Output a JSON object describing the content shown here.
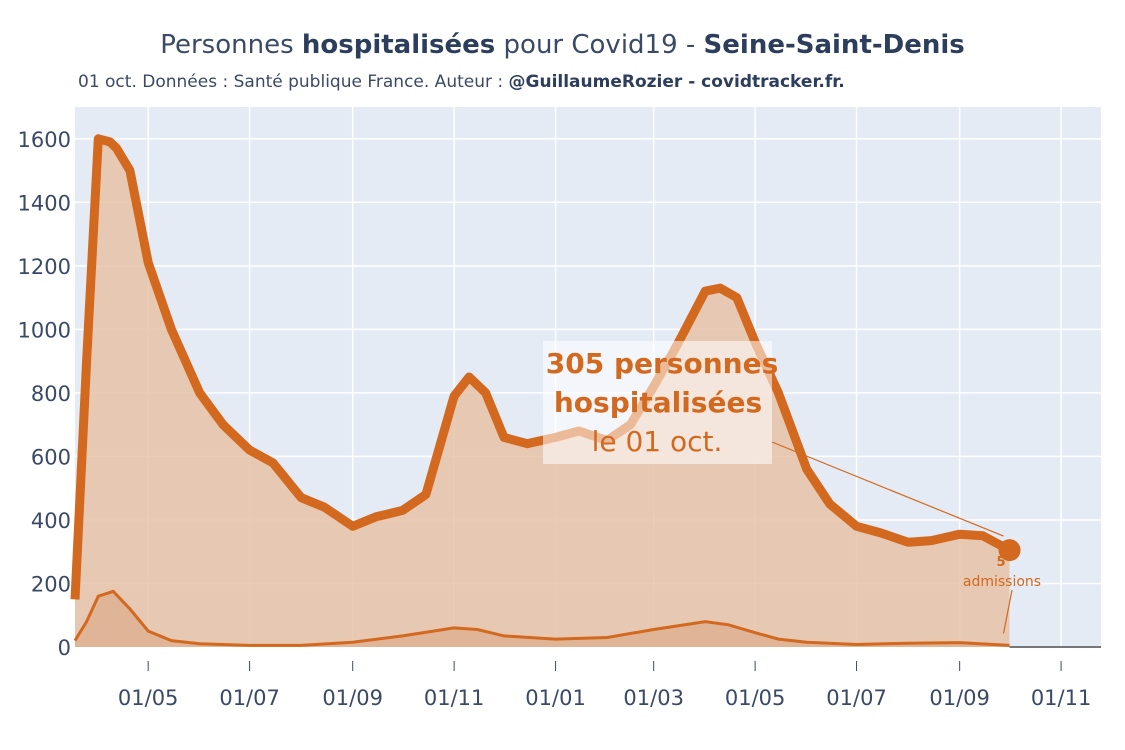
{
  "header": {
    "title_pre": "Personnes ",
    "title_bold1": "hospitalisées",
    "title_mid": " pour Covid19 - ",
    "title_bold2": "Seine-Saint-Denis",
    "subtitle_pre": "01 oct. Données : Santé publique France. Auteur : ",
    "subtitle_bold": "@GuillaumeRozier - covidtracker.fr."
  },
  "annotation": {
    "line1": "305 personnes",
    "line2": "hospitalisées",
    "line3": "le 01 oct."
  },
  "admissions_note": {
    "value": "5",
    "label": "admissions"
  },
  "colors": {
    "main": "#d2691e",
    "fill": "#e7c2a6",
    "bg": "#e4ebf5"
  },
  "chart_data": {
    "type": "line",
    "title": "Personnes hospitalisées pour Covid19 - Seine-Saint-Denis",
    "xlabel": "",
    "ylabel": "",
    "ylim": [
      0,
      1700
    ],
    "yticks": [
      0,
      200,
      400,
      600,
      800,
      1000,
      1200,
      1400,
      1600
    ],
    "xtick_labels": [
      "01/05",
      "01/07",
      "01/09",
      "01/11",
      "01/01",
      "01/03",
      "01/05",
      "01/07",
      "01/09",
      "01/11"
    ],
    "xtick_dates": [
      "2020-05-01",
      "2020-07-01",
      "2020-09-01",
      "2020-11-01",
      "2021-01-01",
      "2021-03-01",
      "2021-05-01",
      "2021-07-01",
      "2021-09-01",
      "2021-11-01"
    ],
    "xlim": [
      "2020-03-18",
      "2021-11-25"
    ],
    "grid": true,
    "series": [
      {
        "x": [
          "2020-03-18",
          "2020-03-25",
          "2020-04-01",
          "2020-04-08",
          "2020-04-12",
          "2020-04-20",
          "2020-05-01",
          "2020-05-15",
          "2020-06-01",
          "2020-06-15",
          "2020-07-01",
          "2020-07-15",
          "2020-08-01",
          "2020-08-15",
          "2020-09-01",
          "2020-09-15",
          "2020-10-01",
          "2020-10-15",
          "2020-11-01",
          "2020-11-10",
          "2020-11-20",
          "2020-12-01",
          "2020-12-15",
          "2021-01-01",
          "2021-01-15",
          "2021-02-01",
          "2021-02-15",
          "2021-03-01",
          "2021-03-15",
          "2021-04-01",
          "2021-04-10",
          "2021-04-20",
          "2021-05-01",
          "2021-05-15",
          "2021-06-01",
          "2021-06-15",
          "2021-07-01",
          "2021-07-15",
          "2021-08-01",
          "2021-08-15",
          "2021-09-01",
          "2021-09-15",
          "2021-10-01"
        ],
        "values": [
          150,
          900,
          1600,
          1590,
          1570,
          1500,
          1210,
          1000,
          800,
          700,
          620,
          580,
          470,
          440,
          380,
          410,
          430,
          480,
          790,
          850,
          800,
          660,
          640,
          660,
          680,
          650,
          700,
          820,
          950,
          1120,
          1130,
          1100,
          960,
          800,
          560,
          450,
          380,
          360,
          330,
          335,
          355,
          350,
          305
        ]
      },
      {
        "name": "admissions",
        "x": [
          "2020-03-18",
          "2020-03-25",
          "2020-04-01",
          "2020-04-10",
          "2020-04-20",
          "2020-05-01",
          "2020-05-15",
          "2020-06-01",
          "2020-07-01",
          "2020-08-01",
          "2020-09-01",
          "2020-10-01",
          "2020-11-01",
          "2020-11-15",
          "2020-12-01",
          "2021-01-01",
          "2021-02-01",
          "2021-03-01",
          "2021-04-01",
          "2021-04-15",
          "2021-05-01",
          "2021-05-15",
          "2021-06-01",
          "2021-07-01",
          "2021-08-01",
          "2021-09-01",
          "2021-10-01"
        ],
        "values": [
          20,
          80,
          160,
          175,
          120,
          50,
          20,
          10,
          5,
          5,
          15,
          35,
          60,
          55,
          35,
          25,
          30,
          55,
          80,
          70,
          45,
          25,
          15,
          8,
          12,
          14,
          5
        ]
      }
    ],
    "last_value": 305
  }
}
